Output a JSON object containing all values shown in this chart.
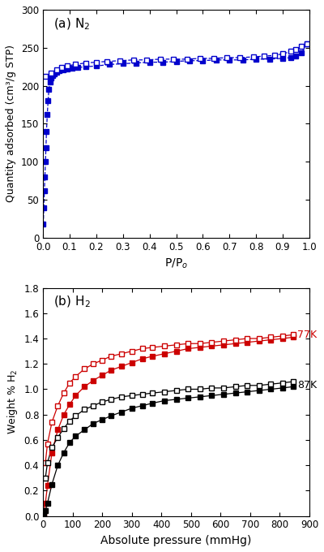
{
  "panel_a": {
    "label": "(a) N$_2$",
    "xlabel": "P/P$_o$",
    "ylabel": "Quantity adsorbed (cm³/g STP)",
    "xlim": [
      0,
      1.0
    ],
    "ylim": [
      0,
      300
    ],
    "yticks": [
      0,
      50,
      100,
      150,
      200,
      250,
      300
    ],
    "xticks": [
      0.0,
      0.1,
      0.2,
      0.3,
      0.4,
      0.5,
      0.6,
      0.7,
      0.8,
      0.9,
      1.0
    ],
    "color": "#0000CC",
    "adsorption_x": [
      0.001,
      0.003,
      0.005,
      0.007,
      0.009,
      0.011,
      0.013,
      0.016,
      0.019,
      0.022,
      0.026,
      0.03,
      0.035,
      0.042,
      0.05,
      0.06,
      0.075,
      0.09,
      0.11,
      0.13,
      0.16,
      0.2,
      0.25,
      0.3,
      0.35,
      0.4,
      0.45,
      0.5,
      0.55,
      0.6,
      0.65,
      0.7,
      0.75,
      0.8,
      0.85,
      0.9,
      0.93,
      0.95,
      0.97,
      0.99
    ],
    "adsorption_y": [
      18,
      40,
      62,
      80,
      100,
      118,
      140,
      162,
      180,
      195,
      205,
      210,
      213,
      216,
      218,
      220,
      221,
      222,
      223,
      224,
      225,
      226,
      228,
      229,
      230,
      231,
      231,
      232,
      233,
      233,
      234,
      234,
      234,
      235,
      235,
      236,
      237,
      239,
      243,
      255
    ],
    "desorption_x": [
      0.99,
      0.97,
      0.95,
      0.93,
      0.9,
      0.87,
      0.83,
      0.79,
      0.74,
      0.69,
      0.64,
      0.59,
      0.54,
      0.49,
      0.44,
      0.39,
      0.34,
      0.29,
      0.24,
      0.2,
      0.16,
      0.12,
      0.09,
      0.07,
      0.05,
      0.03,
      0.01
    ],
    "desorption_y": [
      255,
      252,
      248,
      245,
      242,
      240,
      239,
      238,
      237,
      237,
      236,
      236,
      235,
      235,
      235,
      234,
      234,
      233,
      232,
      231,
      230,
      228,
      226,
      224,
      221,
      217,
      212
    ]
  },
  "panel_b": {
    "label": "(b) H$_2$",
    "xlabel": "Absolute pressure (mmHg)",
    "ylabel": "Weight % H$_2$",
    "xlim": [
      0,
      900
    ],
    "ylim": [
      0.0,
      1.8
    ],
    "yticks": [
      0.0,
      0.2,
      0.4,
      0.6,
      0.8,
      1.0,
      1.2,
      1.4,
      1.6,
      1.8
    ],
    "xticks": [
      0,
      100,
      200,
      300,
      400,
      500,
      600,
      700,
      800,
      900
    ],
    "color_77k": "#CC0000",
    "color_87k": "#000000",
    "ads_77k_x": [
      2,
      8,
      15,
      30,
      50,
      70,
      90,
      110,
      140,
      170,
      200,
      230,
      265,
      300,
      335,
      370,
      410,
      450,
      490,
      530,
      570,
      610,
      650,
      690,
      730,
      770,
      810,
      845
    ],
    "ads_77k_y": [
      0.02,
      0.1,
      0.24,
      0.5,
      0.68,
      0.8,
      0.88,
      0.95,
      1.02,
      1.07,
      1.11,
      1.15,
      1.18,
      1.21,
      1.24,
      1.26,
      1.28,
      1.3,
      1.32,
      1.33,
      1.34,
      1.35,
      1.36,
      1.37,
      1.38,
      1.39,
      1.4,
      1.41
    ],
    "des_77k_x": [
      845,
      810,
      770,
      730,
      690,
      650,
      610,
      570,
      530,
      490,
      450,
      410,
      370,
      335,
      300,
      265,
      230,
      200,
      170,
      140,
      110,
      90,
      70,
      50,
      30,
      15,
      8
    ],
    "des_77k_y": [
      1.43,
      1.42,
      1.41,
      1.4,
      1.4,
      1.39,
      1.38,
      1.37,
      1.36,
      1.36,
      1.35,
      1.34,
      1.33,
      1.32,
      1.3,
      1.28,
      1.26,
      1.23,
      1.2,
      1.16,
      1.1,
      1.05,
      0.97,
      0.87,
      0.74,
      0.57,
      0.42
    ],
    "ads_87k_x": [
      2,
      8,
      15,
      30,
      50,
      70,
      90,
      110,
      140,
      170,
      200,
      230,
      265,
      300,
      335,
      370,
      410,
      450,
      490,
      530,
      570,
      610,
      650,
      690,
      730,
      770,
      810,
      845
    ],
    "ads_87k_y": [
      0.01,
      0.04,
      0.1,
      0.25,
      0.4,
      0.5,
      0.58,
      0.63,
      0.68,
      0.73,
      0.76,
      0.79,
      0.82,
      0.85,
      0.87,
      0.89,
      0.91,
      0.92,
      0.93,
      0.94,
      0.95,
      0.96,
      0.97,
      0.98,
      0.99,
      1.0,
      1.01,
      1.02
    ],
    "des_87k_x": [
      845,
      810,
      770,
      730,
      690,
      650,
      610,
      570,
      530,
      490,
      450,
      410,
      370,
      335,
      300,
      265,
      230,
      200,
      170,
      140,
      110,
      90,
      70,
      50,
      30,
      15,
      8
    ],
    "des_87k_y": [
      1.06,
      1.05,
      1.04,
      1.03,
      1.03,
      1.02,
      1.01,
      1.01,
      1.0,
      1.0,
      0.99,
      0.98,
      0.97,
      0.96,
      0.95,
      0.94,
      0.92,
      0.9,
      0.87,
      0.84,
      0.79,
      0.75,
      0.69,
      0.62,
      0.54,
      0.42,
      0.3
    ],
    "label_77k": "77K",
    "label_87k": "87K"
  },
  "fig_width": 4.0,
  "fig_height": 6.8
}
